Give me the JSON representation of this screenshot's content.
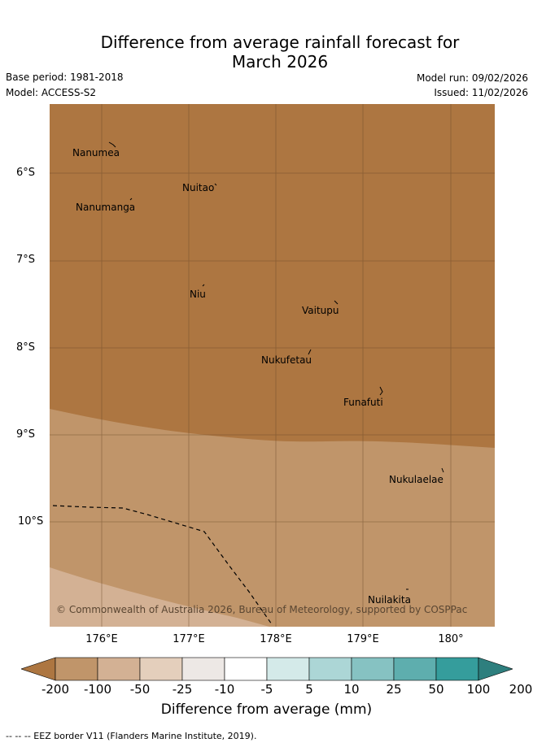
{
  "title_line1": "Difference from average rainfall forecast for",
  "title_line2": "March 2026",
  "base_period": "Base period: 1981-2018",
  "model": "Model: ACCESS-S2",
  "model_run": "Model run: 09/02/2026",
  "issued": "Issued: 11/02/2026",
  "lat_labels": [
    "6°S",
    "7°S",
    "8°S",
    "9°S",
    "10°S"
  ],
  "lon_labels": [
    "176°E",
    "177°E",
    "178°E",
    "179°E",
    "180°"
  ],
  "places": {
    "nanumea": "Nanumea",
    "nuitao": "Nuitao",
    "nanumanga": "Nanumanga",
    "niu": "Niu",
    "vaitupu": "Vaitupu",
    "nukufetau": "Nukufetau",
    "funafuti": "Funafuti",
    "nukulaelae": "Nukulaelae",
    "nuilakita": "Nuilakita"
  },
  "copyright": "© Commonwealth of Australia 2026, Bureau of Meteorology, supported by COSPPac",
  "colorbar": {
    "ticks": [
      "-200",
      "-100",
      "-50",
      "-25",
      "-10",
      "-5",
      "5",
      "10",
      "25",
      "50",
      "100",
      "200"
    ],
    "colors": [
      "#ad7641",
      "#c0956a",
      "#d3b194",
      "#e4cfbc",
      "#ede8e5",
      "#ffffff",
      "#d4eae9",
      "#acd6d6",
      "#86c2c2",
      "#5eaeae",
      "#359d9c",
      "#2e7f7e"
    ],
    "title": "Difference from average (mm)"
  },
  "footer": "--  --  -- EEZ border V11 (Flanders Marine Institute, 2019)."
}
